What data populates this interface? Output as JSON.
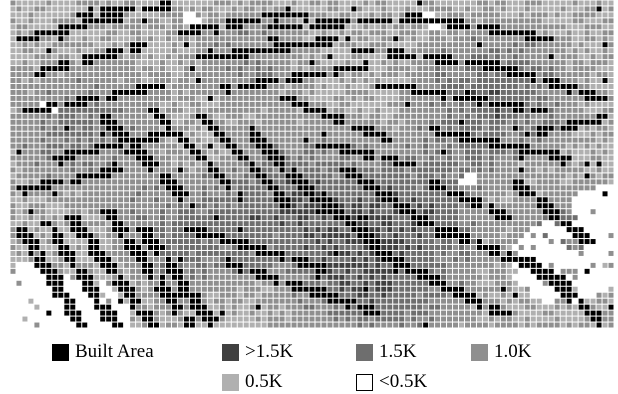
{
  "map": {
    "grid_columns": 101,
    "grid_rows": 55,
    "colors": {
      "built_area": "#000000",
      "gt_1_5k": "#404040",
      "k_1_5": "#6e6e6e",
      "k_1_0": "#8f8f8f",
      "k_0_5": "#b0b0b0",
      "lt_0_5k": "#ffffff",
      "grid_line": "#ffffff"
    }
  },
  "legend": {
    "items": [
      {
        "key": "built_area",
        "label": "Built Area",
        "color": "#000000",
        "outline": false
      },
      {
        "key": "gt_1_5k",
        "label": ">1.5K",
        "color": "#404040",
        "outline": false
      },
      {
        "key": "k_1_5",
        "label": "1.5K",
        "color": "#6e6e6e",
        "outline": false
      },
      {
        "key": "k_1_0",
        "label": "1.0K",
        "color": "#8f8f8f",
        "outline": false
      },
      {
        "key": "k_0_5",
        "label": "0.5K",
        "color": "#b0b0b0",
        "outline": false
      },
      {
        "key": "lt_0_5k",
        "label": "<0.5K",
        "color": "#ffffff",
        "outline": true
      }
    ]
  }
}
